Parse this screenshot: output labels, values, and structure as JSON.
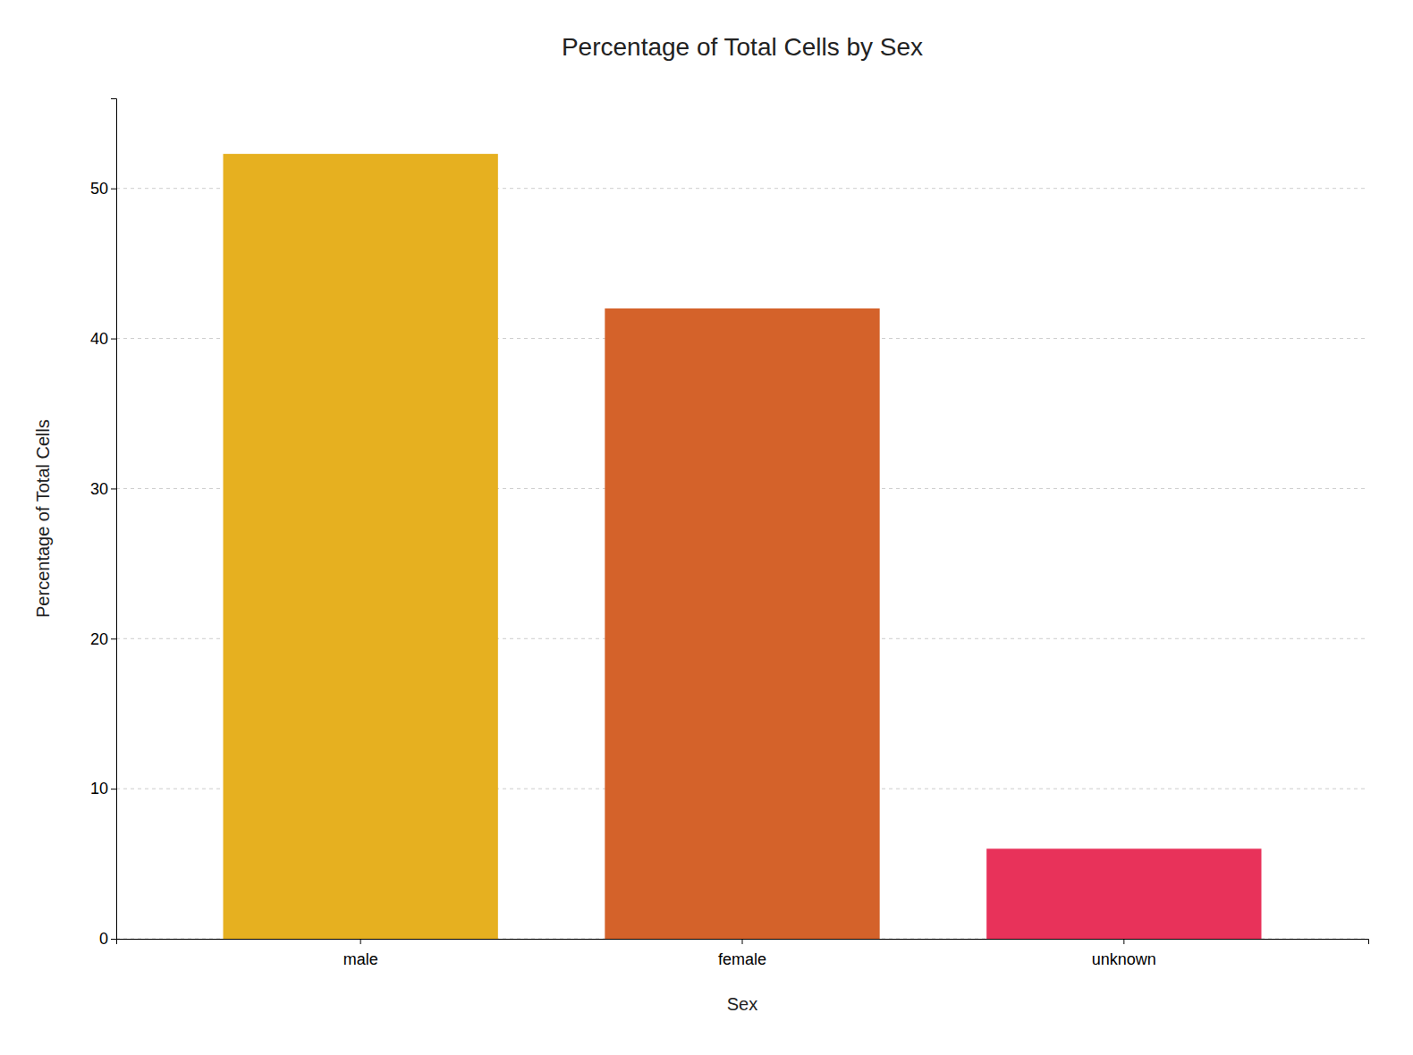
{
  "chart_data": {
    "type": "bar",
    "title": "Percentage of Total Cells by Sex",
    "xlabel": "Sex",
    "ylabel": "Percentage of Total Cells",
    "categories": [
      "male",
      "female",
      "unknown"
    ],
    "values": [
      52.3,
      42.0,
      6.0
    ],
    "colors": [
      "#E6B020",
      "#D4622A",
      "#E8325A"
    ],
    "ylim": [
      0,
      56
    ],
    "yticks": [
      0,
      10,
      20,
      30,
      40,
      50
    ],
    "grid": true
  }
}
